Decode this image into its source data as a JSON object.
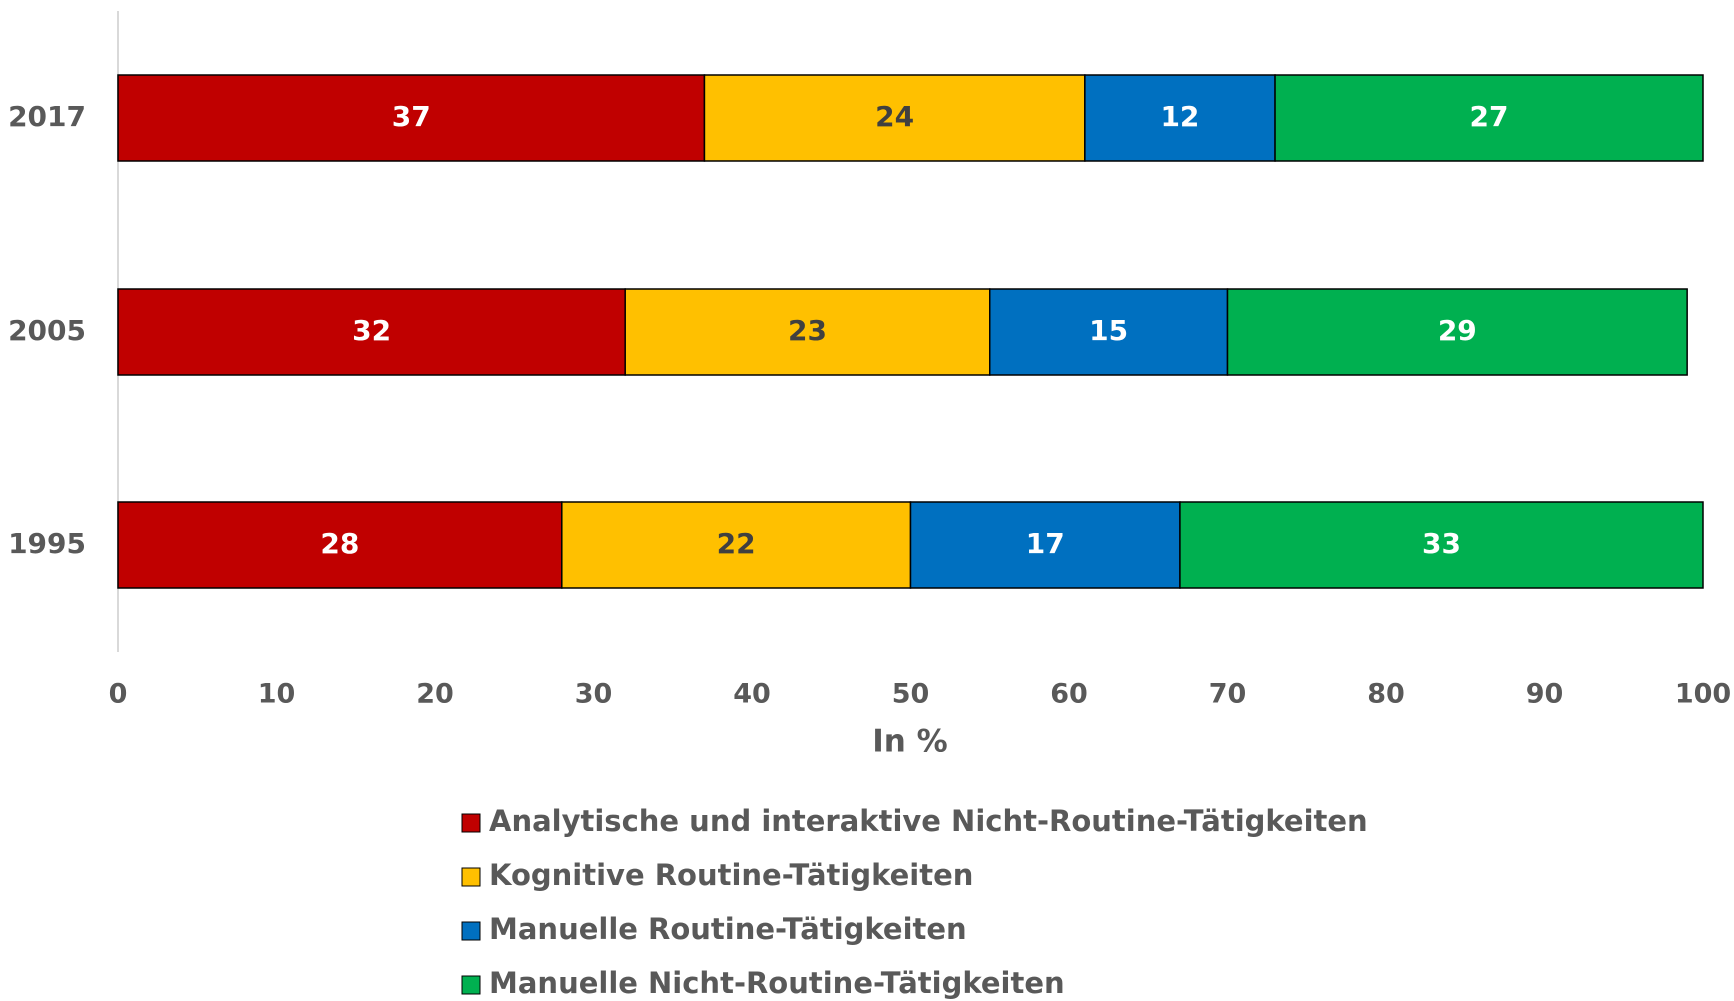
{
  "chart_data": {
    "type": "stacked_barh",
    "categories": [
      "2017",
      "2005",
      "1995"
    ],
    "series": [
      {
        "name": "Analytische und interaktive Nicht-Routine-Tätigkeiten",
        "color": "#c00000",
        "label_color": "#ffffff",
        "values": [
          37,
          32,
          28
        ]
      },
      {
        "name": "Kognitive Routine-Tätigkeiten",
        "color": "#ffc000",
        "label_color": "#404040",
        "values": [
          24,
          23,
          22
        ]
      },
      {
        "name": "Manuelle Routine-Tätigkeiten",
        "color": "#0070c0",
        "label_color": "#ffffff",
        "values": [
          12,
          15,
          17
        ]
      },
      {
        "name": "Manuelle Nicht-Routine-Tätigkeiten",
        "color": "#00b050",
        "label_color": "#ffffff",
        "values": [
          27,
          29,
          33
        ]
      }
    ],
    "xlabel": "In %",
    "xlim": [
      0,
      100
    ],
    "xticks": [
      0,
      10,
      20,
      30,
      40,
      50,
      60,
      70,
      80,
      90,
      100
    ],
    "legend": "bottom"
  }
}
